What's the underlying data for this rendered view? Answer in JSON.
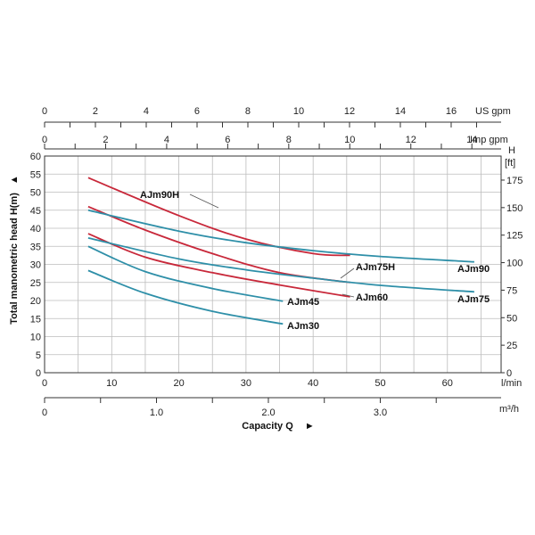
{
  "chart_data": {
    "type": "line",
    "ylabel": "Total manometric head H(m)",
    "ylabel_arrow": "▲",
    "xlabel": "Capacity Q",
    "xlabel_arrow": "►",
    "grid": true,
    "colors": {
      "red": "#c8283a",
      "blue": "#2e8fa8",
      "leader": "#555555"
    },
    "axes": {
      "lmin": {
        "unit": "l/min",
        "range": [
          0,
          68
        ],
        "ticks": [
          0,
          10,
          20,
          30,
          40,
          50,
          60
        ],
        "minor": [
          5,
          15,
          25,
          35,
          45,
          55,
          65
        ]
      },
      "m3h": {
        "unit": "m³/h",
        "range": [
          0,
          4.08
        ],
        "ticks": [
          "0",
          "1.0",
          "2.0",
          "3.0"
        ],
        "tick_values": [
          0,
          1.0,
          2.0,
          3.0
        ],
        "minor": [
          0.5,
          1.5,
          2.5,
          3.5
        ]
      },
      "usgpm": {
        "unit": "US gpm",
        "ticks": [
          0,
          2,
          4,
          6,
          8,
          10,
          12,
          14,
          16
        ],
        "minor": [
          1,
          3,
          5,
          7,
          9,
          11,
          13,
          15,
          17
        ],
        "lmin_per_unit": 3.785
      },
      "impgpm": {
        "unit": "Imp gpm",
        "ticks": [
          0,
          2,
          4,
          6,
          8,
          10,
          12,
          14
        ],
        "minor": [
          1,
          3,
          5,
          7,
          9,
          11,
          13
        ],
        "lmin_per_unit": 4.546
      },
      "head_m": {
        "range": [
          0,
          60
        ],
        "ticks": [
          0,
          5,
          10,
          15,
          20,
          25,
          30,
          35,
          40,
          45,
          50,
          55,
          60
        ]
      },
      "head_ft": {
        "unit_top": "H",
        "unit": "[ft]",
        "ticks": [
          0,
          25,
          50,
          75,
          100,
          125,
          150,
          175
        ],
        "m_per_unit": 0.3048
      }
    },
    "series": [
      {
        "name": "AJm90H",
        "color": "red",
        "x": [
          6.5,
          20,
          30,
          40,
          45.5
        ],
        "y": [
          54,
          43.5,
          37,
          33,
          32.5
        ]
      },
      {
        "name": "AJm75H",
        "color": "red",
        "x": [
          6.5,
          15,
          25,
          35,
          45.5
        ],
        "y": [
          46,
          39.5,
          33,
          27.7,
          25
        ]
      },
      {
        "name": "AJm60",
        "color": "red",
        "x": [
          6.5,
          15,
          25,
          35,
          45.5
        ],
        "y": [
          38.5,
          32,
          27.7,
          24.3,
          21
        ]
      },
      {
        "name": "AJm90",
        "color": "blue",
        "x": [
          6.5,
          20,
          30,
          40,
          50,
          64
        ],
        "y": [
          45,
          39.2,
          36,
          33.8,
          32.2,
          30.7
        ]
      },
      {
        "name": "AJm75",
        "color": "blue",
        "x": [
          6.5,
          20,
          30,
          40,
          50,
          64
        ],
        "y": [
          37.3,
          31.5,
          28.5,
          26.2,
          24.2,
          22.4
        ]
      },
      {
        "name": "AJm45",
        "color": "blue",
        "x": [
          6.5,
          15,
          25,
          35.5
        ],
        "y": [
          35,
          28,
          23.3,
          19.8
        ]
      },
      {
        "name": "AJm30",
        "color": "blue",
        "x": [
          6.5,
          15,
          25,
          35.5
        ],
        "y": [
          28.3,
          22,
          17,
          13.5
        ]
      }
    ]
  }
}
